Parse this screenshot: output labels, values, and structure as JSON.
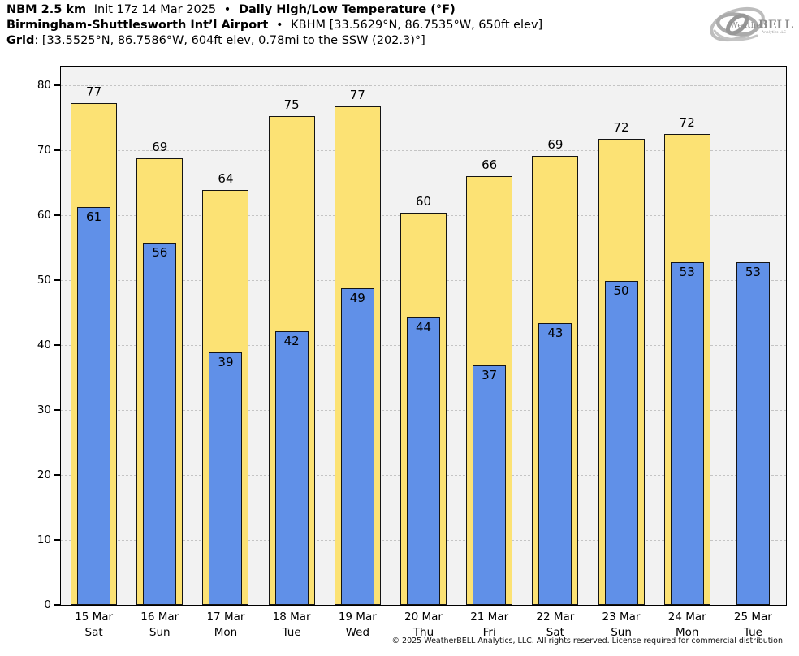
{
  "header": {
    "line1": {
      "model": "NBM 2.5 km",
      "init": "Init 17z 14 Mar 2025",
      "sep": "•",
      "title": "Daily High/Low Temperature (°F)"
    },
    "line2": {
      "station": "Birmingham-Shuttlesworth Int’l Airport",
      "sep": "•",
      "details": "KBHM [33.5629°N, 86.7535°W, 650ft elev]"
    },
    "line3": {
      "label": "Grid",
      "details": ": [33.5525°N, 86.7586°W, 604ft elev, 0.78mi to the SSW (202.3)°]"
    }
  },
  "logo": {
    "weather": "Weather",
    "bell": "BELL",
    "sub": "Analytics LLC"
  },
  "chart_data": {
    "type": "bar",
    "title": "Daily High/Low Temperature (°F)",
    "xlabel": "",
    "ylabel": "Temperature [°F]",
    "ylim": [
      0,
      82.9
    ],
    "yticks": [
      0,
      10,
      20,
      30,
      40,
      50,
      60,
      70,
      80
    ],
    "grid": "horizontal dash-dot, behind bars",
    "legend": "none",
    "plot_bg": "#f2f2f2",
    "categories": [
      {
        "date": "15 Mar",
        "day": "Sat"
      },
      {
        "date": "16 Mar",
        "day": "Sun"
      },
      {
        "date": "17 Mar",
        "day": "Mon"
      },
      {
        "date": "18 Mar",
        "day": "Tue"
      },
      {
        "date": "19 Mar",
        "day": "Wed"
      },
      {
        "date": "20 Mar",
        "day": "Thu"
      },
      {
        "date": "21 Mar",
        "day": "Fri"
      },
      {
        "date": "22 Mar",
        "day": "Sat"
      },
      {
        "date": "23 Mar",
        "day": "Sun"
      },
      {
        "date": "24 Mar",
        "day": "Mon"
      },
      {
        "date": "25 Mar",
        "day": "Tue"
      }
    ],
    "series": [
      {
        "name": "Daily High",
        "color": "#FCE274",
        "values": [
          77.2,
          68.8,
          63.9,
          75.2,
          76.7,
          60.4,
          66.0,
          69.1,
          71.7,
          72.5,
          null
        ],
        "labels": [
          "77",
          "69",
          "64",
          "75",
          "77",
          "60",
          "66",
          "69",
          "72",
          "72",
          ""
        ]
      },
      {
        "name": "Daily Low",
        "color": "#6090E8",
        "values": [
          61.3,
          55.7,
          38.9,
          42.1,
          48.7,
          44.3,
          36.9,
          43.4,
          49.9,
          52.7,
          52.8
        ],
        "labels": [
          "61",
          "56",
          "39",
          "42",
          "49",
          "44",
          "37",
          "43",
          "50",
          "53",
          "53"
        ]
      }
    ]
  },
  "footer": {
    "copyright": "© 2025 WeatherBELL Analytics, LLC. All rights reserved. License required for commercial distribution."
  }
}
